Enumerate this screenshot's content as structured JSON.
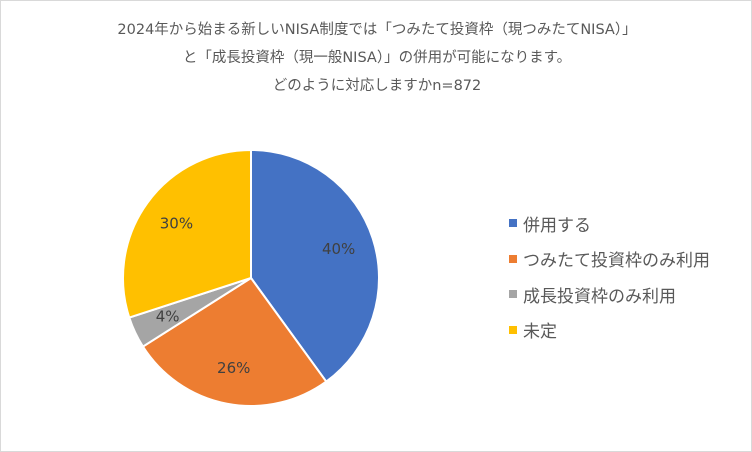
{
  "chart_data": {
    "type": "pie",
    "title_lines": [
      "2024年から始まる新しいNISA制度では「つみたて投資枠（現つみたてNISA）」",
      "と「成長投資枠（現一般NISA）」の併用が可能になります。",
      "どのように対応しますかn=872"
    ],
    "categories": [
      "併用する",
      "つみたて投資枠のみ利用",
      "成長投資枠のみ利用",
      "未定"
    ],
    "values": [
      40,
      26,
      4,
      30
    ],
    "value_labels": [
      "40%",
      "26%",
      "4%",
      "30%"
    ],
    "colors": [
      "#4472c4",
      "#ed7d31",
      "#a5a5a5",
      "#ffc000"
    ],
    "legend_position": "right"
  }
}
